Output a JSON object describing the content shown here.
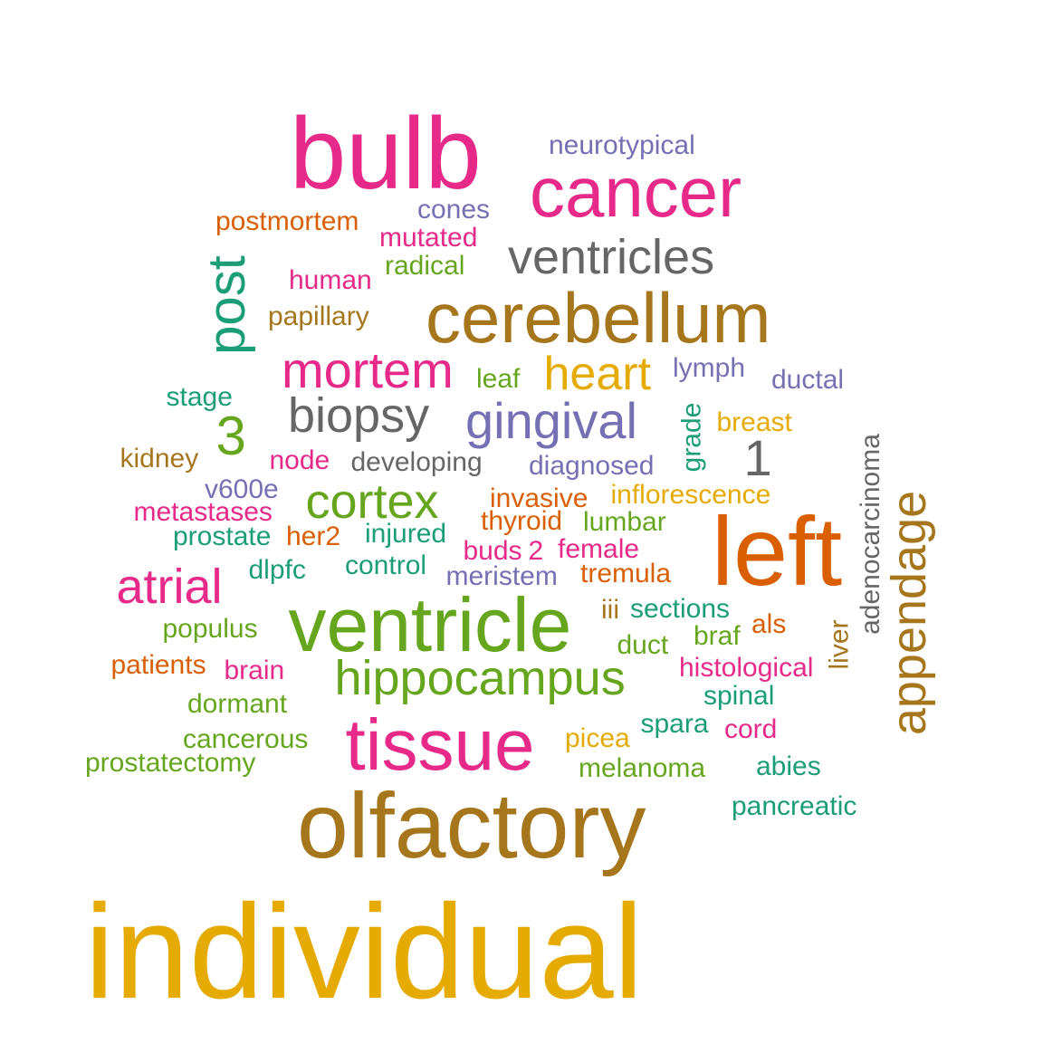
{
  "palette": {
    "teal": "#1B9E77",
    "orange": "#D95F02",
    "purple": "#7570B3",
    "magenta": "#E7298A",
    "green": "#66A61E",
    "gold": "#E6AB02",
    "brown": "#A6761D",
    "gray": "#666666"
  },
  "words": [
    {
      "text": "individual",
      "color": "gold",
      "rotated": false
    },
    {
      "text": "olfactory",
      "color": "brown",
      "rotated": false
    },
    {
      "text": "bulb",
      "color": "magenta",
      "rotated": false
    },
    {
      "text": "cancer",
      "color": "magenta",
      "rotated": false
    },
    {
      "text": "neurotypical",
      "color": "purple",
      "rotated": false
    },
    {
      "text": "cones",
      "color": "purple",
      "rotated": false
    },
    {
      "text": "postmortem",
      "color": "orange",
      "rotated": false
    },
    {
      "text": "mutated",
      "color": "magenta",
      "rotated": false
    },
    {
      "text": "ventricles",
      "color": "gray",
      "rotated": false
    },
    {
      "text": "radical",
      "color": "green",
      "rotated": false
    },
    {
      "text": "human",
      "color": "magenta",
      "rotated": false
    },
    {
      "text": "post",
      "color": "teal",
      "rotated": true
    },
    {
      "text": "papillary",
      "color": "brown",
      "rotated": false
    },
    {
      "text": "cerebellum",
      "color": "brown",
      "rotated": false
    },
    {
      "text": "mortem",
      "color": "magenta",
      "rotated": false
    },
    {
      "text": "leaf",
      "color": "green",
      "rotated": false
    },
    {
      "text": "heart",
      "color": "gold",
      "rotated": false
    },
    {
      "text": "lymph",
      "color": "purple",
      "rotated": false
    },
    {
      "text": "ductal",
      "color": "purple",
      "rotated": false
    },
    {
      "text": "stage",
      "color": "teal",
      "rotated": false
    },
    {
      "text": "3",
      "color": "green",
      "rotated": false
    },
    {
      "text": "biopsy",
      "color": "gray",
      "rotated": false
    },
    {
      "text": "gingival",
      "color": "purple",
      "rotated": false
    },
    {
      "text": "grade",
      "color": "teal",
      "rotated": true
    },
    {
      "text": "breast",
      "color": "gold",
      "rotated": false
    },
    {
      "text": "adenocarcinoma",
      "color": "gray",
      "rotated": true
    },
    {
      "text": "kidney",
      "color": "brown",
      "rotated": false
    },
    {
      "text": "node",
      "color": "magenta",
      "rotated": false
    },
    {
      "text": "developing",
      "color": "gray",
      "rotated": false
    },
    {
      "text": "diagnosed",
      "color": "purple",
      "rotated": false
    },
    {
      "text": "1",
      "color": "gray",
      "rotated": false
    },
    {
      "text": "v600e",
      "color": "purple",
      "rotated": false
    },
    {
      "text": "cortex",
      "color": "green",
      "rotated": false
    },
    {
      "text": "invasive",
      "color": "orange",
      "rotated": false
    },
    {
      "text": "inflorescence",
      "color": "gold",
      "rotated": false
    },
    {
      "text": "appendage",
      "color": "brown",
      "rotated": true
    },
    {
      "text": "metastases",
      "color": "magenta",
      "rotated": false
    },
    {
      "text": "thyroid",
      "color": "orange",
      "rotated": false
    },
    {
      "text": "lumbar",
      "color": "green",
      "rotated": false
    },
    {
      "text": "left",
      "color": "orange",
      "rotated": false
    },
    {
      "text": "prostate",
      "color": "teal",
      "rotated": false
    },
    {
      "text": "her2",
      "color": "orange",
      "rotated": false
    },
    {
      "text": "injured",
      "color": "teal",
      "rotated": false
    },
    {
      "text": "buds",
      "color": "magenta",
      "rotated": false
    },
    {
      "text": "2",
      "color": "magenta",
      "rotated": false
    },
    {
      "text": "female",
      "color": "magenta",
      "rotated": false
    },
    {
      "text": "atrial",
      "color": "magenta",
      "rotated": false
    },
    {
      "text": "dlpfc",
      "color": "teal",
      "rotated": false
    },
    {
      "text": "control",
      "color": "teal",
      "rotated": false
    },
    {
      "text": "meristem",
      "color": "purple",
      "rotated": false
    },
    {
      "text": "tremula",
      "color": "orange",
      "rotated": false
    },
    {
      "text": "ventricle",
      "color": "green",
      "rotated": false
    },
    {
      "text": "iii",
      "color": "brown",
      "rotated": false
    },
    {
      "text": "sections",
      "color": "teal",
      "rotated": false
    },
    {
      "text": "populus",
      "color": "green",
      "rotated": false
    },
    {
      "text": "braf",
      "color": "green",
      "rotated": false
    },
    {
      "text": "als",
      "color": "orange",
      "rotated": false
    },
    {
      "text": "liver",
      "color": "brown",
      "rotated": true
    },
    {
      "text": "duct",
      "color": "green",
      "rotated": false
    },
    {
      "text": "patients",
      "color": "orange",
      "rotated": false
    },
    {
      "text": "brain",
      "color": "magenta",
      "rotated": false
    },
    {
      "text": "hippocampus",
      "color": "green",
      "rotated": false
    },
    {
      "text": "histological",
      "color": "magenta",
      "rotated": false
    },
    {
      "text": "dormant",
      "color": "green",
      "rotated": false
    },
    {
      "text": "spinal",
      "color": "teal",
      "rotated": false
    },
    {
      "text": "tissue",
      "color": "magenta",
      "rotated": false
    },
    {
      "text": "spara",
      "color": "teal",
      "rotated": false
    },
    {
      "text": "cord",
      "color": "magenta",
      "rotated": false
    },
    {
      "text": "cancerous",
      "color": "green",
      "rotated": false
    },
    {
      "text": "picea",
      "color": "gold",
      "rotated": false
    },
    {
      "text": "prostatectomy",
      "color": "green",
      "rotated": false
    },
    {
      "text": "melanoma",
      "color": "green",
      "rotated": false
    },
    {
      "text": "abies",
      "color": "teal",
      "rotated": false
    },
    {
      "text": "pancreatic",
      "color": "teal",
      "rotated": false
    }
  ]
}
